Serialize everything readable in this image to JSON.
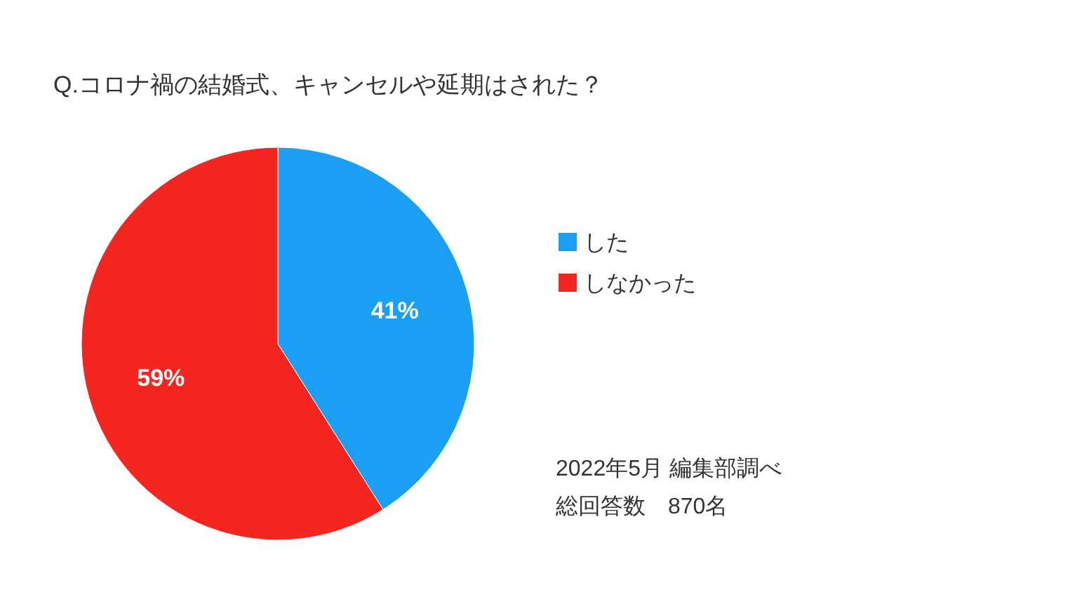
{
  "chart_data": {
    "type": "pie",
    "title": "Q.コロナ禍の結婚式、キャンセルや延期はされた？",
    "categories": [
      "した",
      "しなかった"
    ],
    "values": [
      41,
      59
    ],
    "colors": [
      "#1a9ff5",
      "#f5261f"
    ],
    "value_labels": [
      "41%",
      "59%"
    ],
    "legend": "right",
    "annotations": [
      "2022年5月 編集部調べ",
      "総回答数　870名"
    ]
  }
}
